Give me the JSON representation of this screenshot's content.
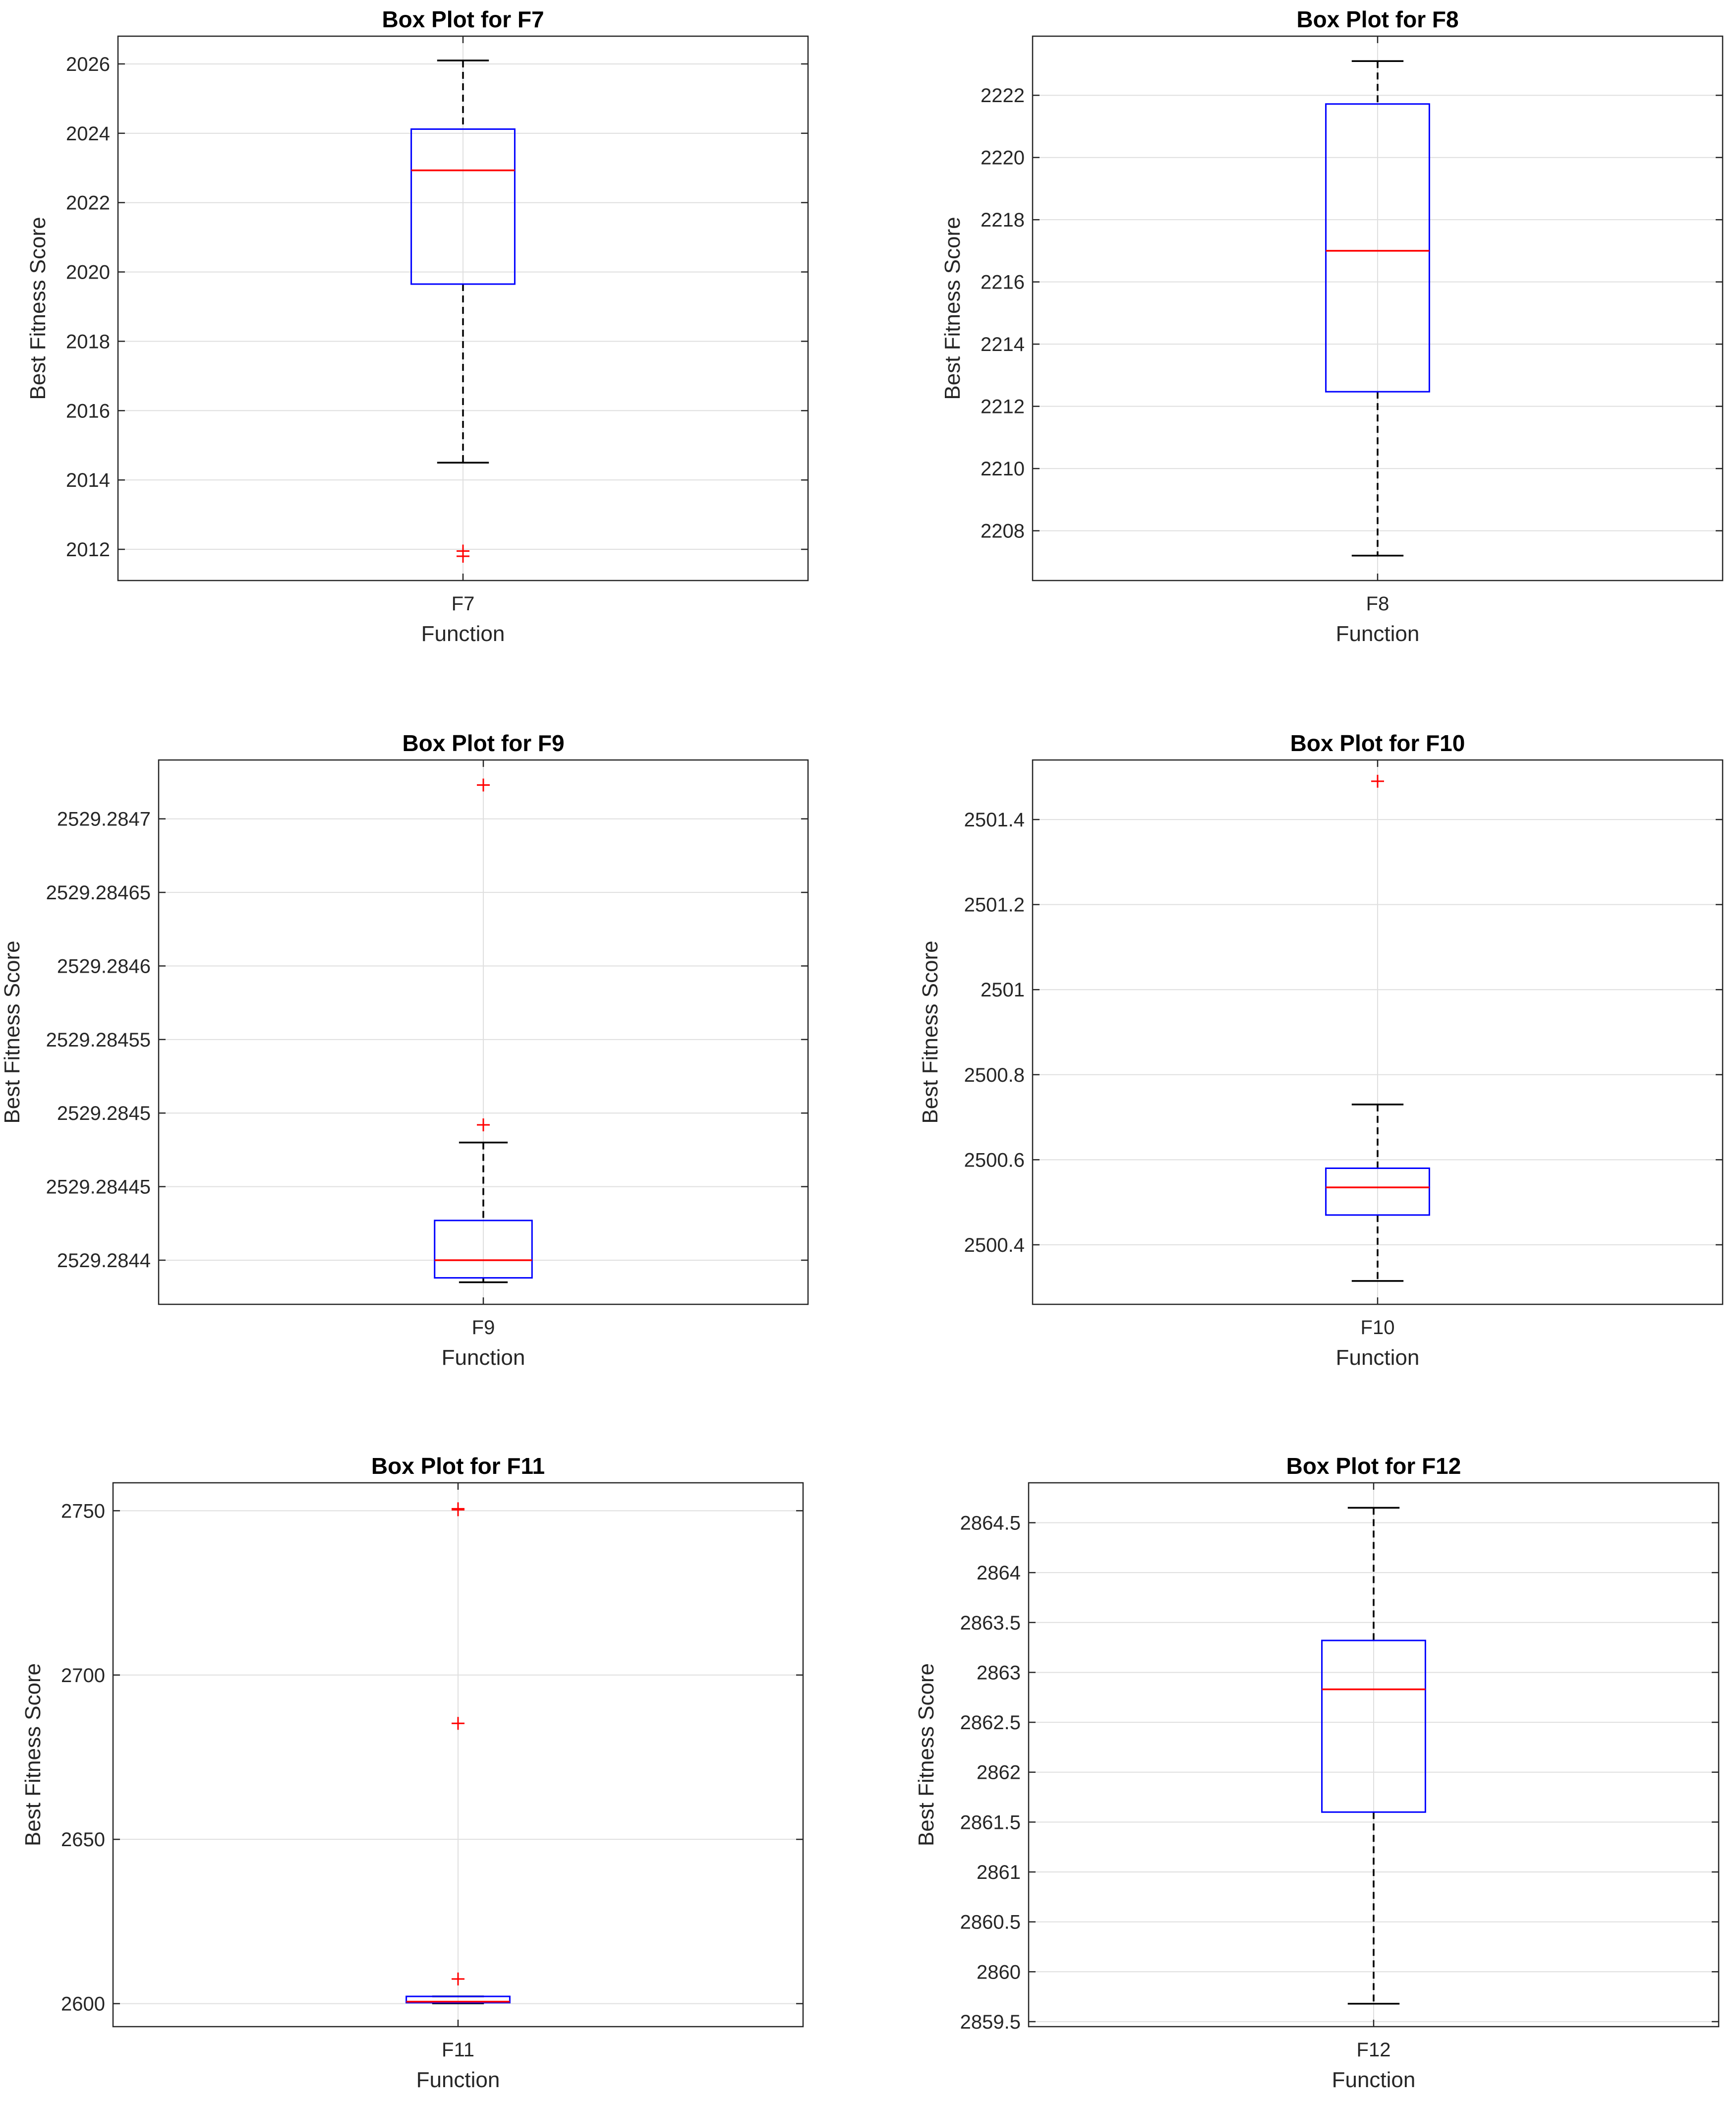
{
  "colors": {
    "box": "#0000ff",
    "median": "#ff0000",
    "whisker": "#000000",
    "outlier": "#ff0000",
    "grid": "#dfdfdf",
    "axis": "#262626"
  },
  "chart_data": [
    {
      "type": "box",
      "title": "Box Plot for F7",
      "xlabel": "Function",
      "ylabel": "Best Fitness Score",
      "categories": [
        "F7"
      ],
      "ylim": [
        2011.1,
        2026.8
      ],
      "yticks": [
        2012,
        2014,
        2016,
        2018,
        2020,
        2022,
        2024,
        2026
      ],
      "ytick_labels": [
        "2012",
        "2014",
        "2016",
        "2018",
        "2020",
        "2022",
        "2024",
        "2026"
      ],
      "grid": true,
      "stats": {
        "whisker_low": 2014.5,
        "q1": 2019.65,
        "median": 2022.93,
        "q3": 2024.12,
        "whisker_high": 2026.1
      },
      "outliers": [
        2011.95,
        2011.8
      ]
    },
    {
      "type": "box",
      "title": "Box Plot for F8",
      "xlabel": "Function",
      "ylabel": "Best Fitness Score",
      "categories": [
        "F8"
      ],
      "ylim": [
        2206.4,
        2223.9
      ],
      "yticks": [
        2208,
        2210,
        2212,
        2214,
        2216,
        2218,
        2220,
        2222
      ],
      "ytick_labels": [
        "2208",
        "2210",
        "2212",
        "2214",
        "2216",
        "2218",
        "2220",
        "2222"
      ],
      "grid": true,
      "stats": {
        "whisker_low": 2207.2,
        "q1": 2212.47,
        "median": 2217.0,
        "q3": 2221.72,
        "whisker_high": 2223.1
      },
      "outliers": []
    },
    {
      "type": "box",
      "title": "Box Plot for F9",
      "xlabel": "Function",
      "ylabel": "Best Fitness Score",
      "categories": [
        "F9"
      ],
      "ylim": [
        2529.28437,
        2529.28474
      ],
      "yticks": [
        2529.2844,
        2529.28445,
        2529.2845,
        2529.28455,
        2529.2846,
        2529.28465,
        2529.2847
      ],
      "ytick_labels": [
        "2529.2844",
        "2529.28445",
        "2529.2845",
        "2529.28455",
        "2529.2846",
        "2529.28465",
        "2529.2847"
      ],
      "grid": true,
      "stats": {
        "whisker_low": 2529.284385,
        "q1": 2529.284388,
        "median": 2529.2844,
        "q3": 2529.284427,
        "whisker_high": 2529.28448
      },
      "outliers": [
        2529.284723,
        2529.284492
      ]
    },
    {
      "type": "box",
      "title": "Box Plot for F10",
      "xlabel": "Function",
      "ylabel": "Best Fitness Score",
      "categories": [
        "F10"
      ],
      "ylim": [
        2500.26,
        2501.54
      ],
      "yticks": [
        2500.4,
        2500.6,
        2500.8,
        2501,
        2501.2,
        2501.4
      ],
      "ytick_labels": [
        "2500.4",
        "2500.6",
        "2500.8",
        "2501",
        "2501.2",
        "2501.4"
      ],
      "grid": true,
      "stats": {
        "whisker_low": 2500.315,
        "q1": 2500.47,
        "median": 2500.535,
        "q3": 2500.58,
        "whisker_high": 2500.73
      },
      "outliers": [
        2501.49
      ]
    },
    {
      "type": "box",
      "title": "Box Plot for F11",
      "xlabel": "Function",
      "ylabel": "Best Fitness Score",
      "categories": [
        "F11"
      ],
      "ylim": [
        2593,
        2758.5
      ],
      "yticks": [
        2600,
        2650,
        2700,
        2750
      ],
      "ytick_labels": [
        "2600",
        "2650",
        "2700",
        "2750"
      ],
      "grid": true,
      "stats": {
        "whisker_low": 2600.1,
        "q1": 2600.3,
        "median": 2600.6,
        "q3": 2602.2,
        "whisker_high": 2602.2
      },
      "outliers": [
        2750.6,
        2750.3,
        2685.3,
        2607.5
      ]
    },
    {
      "type": "box",
      "title": "Box Plot for F12",
      "xlabel": "Function",
      "ylabel": "Best Fitness Score",
      "categories": [
        "F12"
      ],
      "ylim": [
        2859.45,
        2864.9
      ],
      "yticks": [
        2859.5,
        2860,
        2860.5,
        2861,
        2861.5,
        2862,
        2862.5,
        2863,
        2863.5,
        2864,
        2864.5
      ],
      "ytick_labels": [
        "2859.5",
        "2860",
        "2860.5",
        "2861",
        "2861.5",
        "2862",
        "2862.5",
        "2863",
        "2863.5",
        "2864",
        "2864.5"
      ],
      "grid": true,
      "stats": {
        "whisker_low": 2859.68,
        "q1": 2861.6,
        "median": 2862.83,
        "q3": 2863.32,
        "whisker_high": 2864.65
      },
      "outliers": []
    }
  ]
}
